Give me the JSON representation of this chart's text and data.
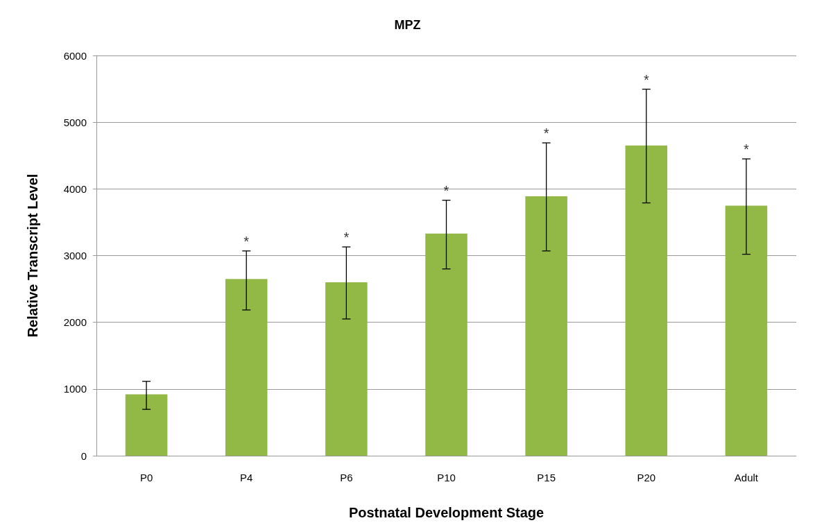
{
  "chart_data": {
    "type": "bar",
    "title": "MPZ",
    "xlabel": "Postnatal Development Stage",
    "ylabel": "Relative Transcript Level",
    "categories": [
      "P0",
      "P4",
      "P6",
      "P10",
      "P15",
      "P20",
      "Adult"
    ],
    "values": [
      920,
      2650,
      2600,
      3330,
      3890,
      4650,
      3750
    ],
    "color": "#92b846",
    "errors": [
      [
        695,
        1115
      ],
      [
        2185,
        3070
      ],
      [
        2050,
        3130
      ],
      [
        2800,
        3830
      ],
      [
        3070,
        4690
      ],
      [
        3790,
        5495
      ],
      [
        3020,
        4450
      ]
    ],
    "ylim": [
      0,
      6000
    ],
    "yticks": [
      0,
      1000,
      2000,
      3000,
      4000,
      5000,
      6000
    ],
    "grid": "y",
    "annotations": [
      {
        "text": "*",
        "x": "P4",
        "y": 3070
      },
      {
        "text": "*",
        "x": "P6",
        "y": 3130
      },
      {
        "text": "*",
        "x": "P10",
        "y": 3830
      },
      {
        "text": "*",
        "x": "P15",
        "y": 4690
      },
      {
        "text": "*",
        "x": "P20",
        "y": 5495
      },
      {
        "text": "*",
        "x": "Adult",
        "y": 4450
      }
    ]
  }
}
